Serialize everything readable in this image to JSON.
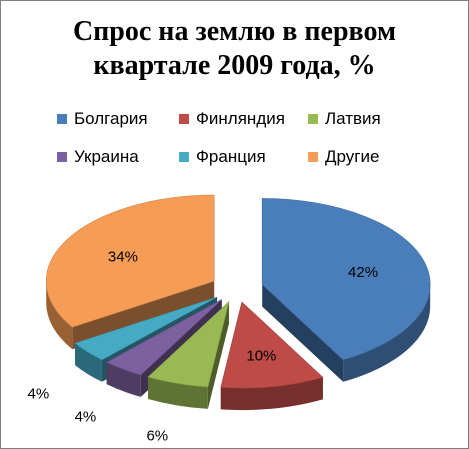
{
  "chart_data": {
    "type": "pie",
    "title_lines": [
      "Спрос на землю в первом",
      "квартале 2009 года, %"
    ],
    "categories": [
      "Болгария",
      "Финляндия",
      "Латвия",
      "Украина",
      "Франция",
      "Другие"
    ],
    "values": [
      42,
      10,
      6,
      4,
      4,
      34
    ],
    "data_labels": [
      "42%",
      "10%",
      "6%",
      "4%",
      "4%",
      "34%"
    ],
    "colors": [
      "#4a7ebb",
      "#be4b48",
      "#98b954",
      "#7d60a0",
      "#46aac5",
      "#f59d56"
    ],
    "legend_position": "top",
    "exploded": true,
    "three_d": true
  }
}
